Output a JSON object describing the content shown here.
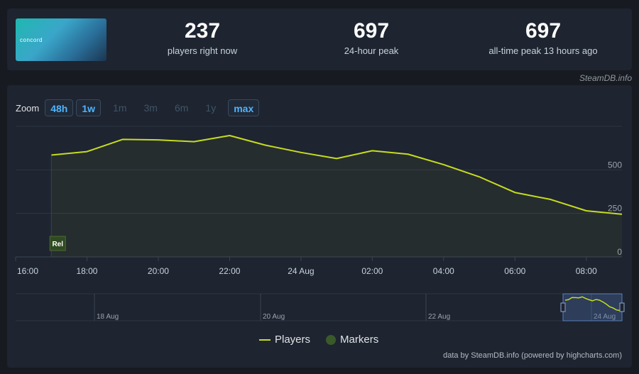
{
  "game": {
    "image_text": "concord"
  },
  "stats": [
    {
      "value": "237",
      "label": "players right now"
    },
    {
      "value": "697",
      "label": "24-hour peak"
    },
    {
      "value": "697",
      "label": "all-time peak 13 hours ago"
    }
  ],
  "credit_top": "SteamDB.info",
  "zoom": {
    "label": "Zoom",
    "buttons": [
      {
        "label": "48h",
        "active": true
      },
      {
        "label": "1w",
        "active": true
      },
      {
        "label": "1m",
        "active": false
      },
      {
        "label": "3m",
        "active": false
      },
      {
        "label": "6m",
        "active": false
      },
      {
        "label": "1y",
        "active": false
      },
      {
        "label": "max",
        "active": true
      }
    ]
  },
  "colors": {
    "series": "#c6dc1e",
    "marker": "#3a5a2a",
    "accent": "#4fb4ff"
  },
  "chart_data": {
    "type": "line",
    "x_tick_labels": [
      "16:00",
      "18:00",
      "20:00",
      "22:00",
      "24 Aug",
      "02:00",
      "04:00",
      "06:00",
      "08:00"
    ],
    "y_ticks": [
      0,
      250,
      500
    ],
    "ylim": [
      0,
      750
    ],
    "grid": true,
    "series": [
      {
        "name": "Players",
        "x_hours": [
          17,
          18,
          19,
          20,
          21,
          22,
          23,
          24,
          25,
          26,
          27,
          28,
          29,
          30,
          31,
          32,
          33
        ],
        "values": [
          585,
          605,
          675,
          672,
          662,
          697,
          642,
          600,
          565,
          610,
          590,
          530,
          460,
          370,
          330,
          265,
          245
        ]
      }
    ],
    "markers": [
      {
        "label": "Rel",
        "x_hour": 17
      }
    ],
    "navigator_labels": [
      "18 Aug",
      "20 Aug",
      "22 Aug",
      "24 Aug"
    ],
    "legend": [
      {
        "label": "Players",
        "kind": "line"
      },
      {
        "label": "Markers",
        "kind": "dot"
      }
    ]
  },
  "credit_bottom": "data by SteamDB.info (powered by highcharts.com)"
}
